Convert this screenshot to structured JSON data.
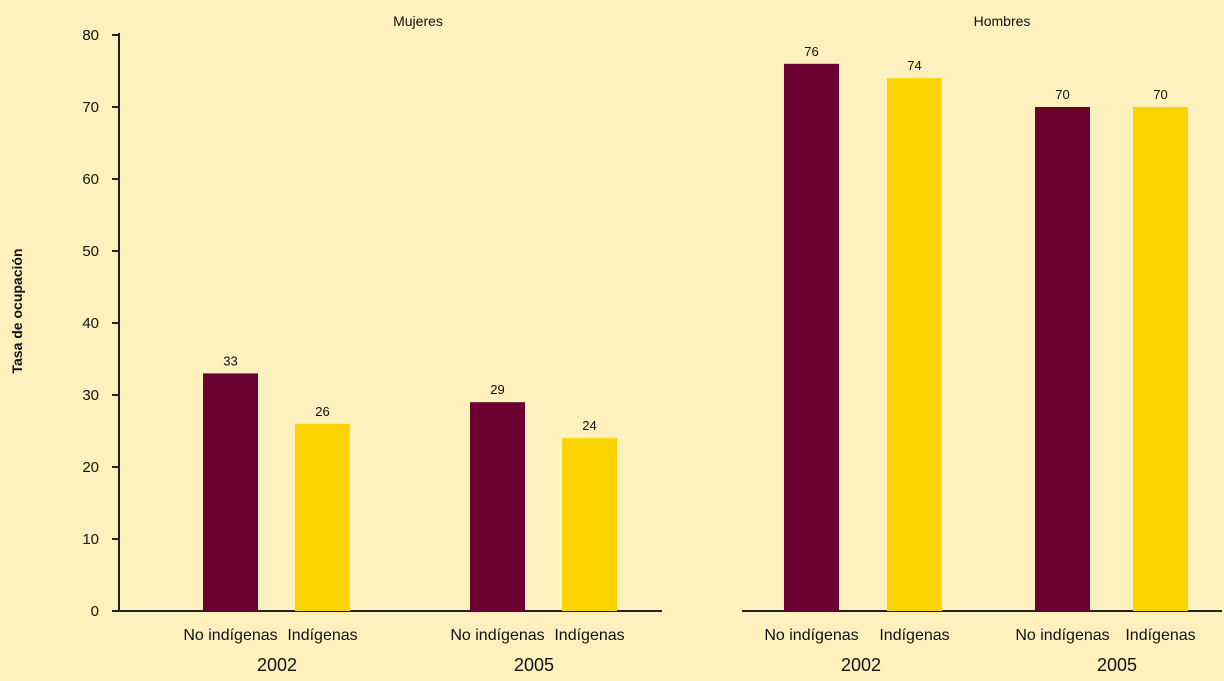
{
  "chart_data": {
    "type": "bar",
    "ylabel": "Tasa de ocupación",
    "ylim": [
      0,
      80
    ],
    "yticks": [
      0,
      10,
      20,
      30,
      40,
      50,
      60,
      70,
      80
    ],
    "colors": {
      "No indígenas": "#6B0033",
      "Indígenas": "#FCD200"
    },
    "panels": [
      {
        "title": "Mujeres",
        "groups": [
          {
            "year": "2002",
            "bars": [
              {
                "label": "No indígenas",
                "value": 33
              },
              {
                "label": "Indígenas",
                "value": 26
              }
            ]
          },
          {
            "year": "2005",
            "bars": [
              {
                "label": "No indígenas",
                "value": 29
              },
              {
                "label": "Indígenas",
                "value": 24
              }
            ]
          }
        ]
      },
      {
        "title": "Hombres",
        "groups": [
          {
            "year": "2002",
            "bars": [
              {
                "label": "No indígenas",
                "value": 76
              },
              {
                "label": "Indígenas",
                "value": 74
              }
            ]
          },
          {
            "year": "2005",
            "bars": [
              {
                "label": "No indígenas",
                "value": 70
              },
              {
                "label": "Indígenas",
                "value": 70
              }
            ]
          }
        ]
      }
    ]
  }
}
